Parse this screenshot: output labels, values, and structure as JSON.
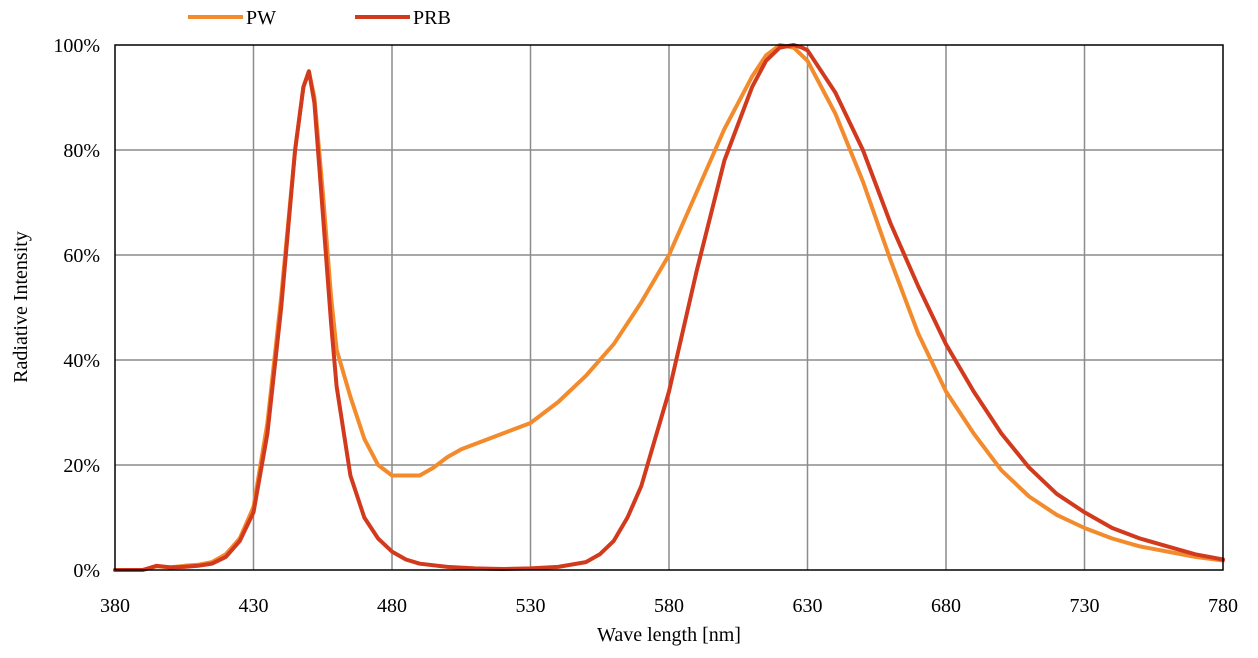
{
  "chart_data": {
    "type": "line",
    "title": "",
    "xlabel": "Wave length [nm]",
    "ylabel": "Radiative Intensity",
    "xlim": [
      380,
      780
    ],
    "ylim": [
      0,
      100
    ],
    "x_ticks": [
      380,
      430,
      480,
      530,
      580,
      630,
      680,
      730,
      780
    ],
    "x_tick_labels": [
      "380",
      "430",
      "480",
      "530",
      "580",
      "630",
      "680",
      "730",
      "780"
    ],
    "y_ticks": [
      0,
      20,
      40,
      60,
      80,
      100
    ],
    "y_tick_labels": [
      "0%",
      "20%",
      "40%",
      "60%",
      "80%",
      "100%"
    ],
    "grid": true,
    "legend_position": "top-left",
    "series": [
      {
        "name": "PW",
        "color": "#f38b2d",
        "x": [
          380,
          390,
          395,
          400,
          405,
          410,
          415,
          420,
          425,
          430,
          435,
          440,
          445,
          448,
          450,
          452,
          455,
          458,
          460,
          465,
          470,
          475,
          480,
          485,
          490,
          495,
          500,
          505,
          510,
          520,
          530,
          540,
          550,
          560,
          570,
          580,
          590,
          600,
          610,
          615,
          620,
          625,
          630,
          640,
          650,
          660,
          670,
          680,
          690,
          700,
          710,
          720,
          730,
          740,
          750,
          760,
          770,
          780
        ],
        "y": [
          0,
          0,
          0.7,
          0.5,
          0.8,
          1,
          1.5,
          3,
          6,
          12,
          28,
          52,
          80,
          92,
          95,
          90,
          72,
          52,
          42,
          33,
          25,
          20,
          18,
          18,
          18,
          19.5,
          21.5,
          23,
          24,
          26,
          28,
          32,
          37,
          43,
          51,
          60,
          72,
          84,
          94,
          98,
          100,
          99.5,
          97,
          87,
          74,
          59,
          45,
          34,
          26,
          19,
          14,
          10.5,
          8,
          6,
          4.5,
          3.5,
          2.5,
          1.8
        ]
      },
      {
        "name": "PRB",
        "color": "#d23a1e",
        "x": [
          380,
          390,
          395,
          400,
          405,
          410,
          415,
          420,
          425,
          430,
          435,
          440,
          445,
          448,
          450,
          452,
          455,
          458,
          460,
          465,
          470,
          475,
          480,
          485,
          490,
          500,
          510,
          520,
          530,
          540,
          550,
          555,
          560,
          565,
          570,
          575,
          580,
          590,
          600,
          610,
          615,
          620,
          625,
          628,
          630,
          640,
          650,
          660,
          670,
          680,
          690,
          700,
          710,
          720,
          730,
          740,
          750,
          760,
          770,
          780
        ],
        "y": [
          0,
          0,
          0.8,
          0.5,
          0.6,
          0.8,
          1.2,
          2.5,
          5.5,
          11,
          26,
          50,
          80,
          92,
          95,
          89,
          68,
          47,
          35,
          18,
          10,
          6,
          3.5,
          2,
          1.2,
          0.6,
          0.3,
          0.2,
          0.3,
          0.6,
          1.5,
          3,
          5.5,
          10,
          16,
          25,
          34,
          57,
          78,
          92,
          97,
          99.5,
          100,
          99.5,
          99,
          91,
          80,
          66,
          54,
          43,
          34,
          26,
          19.5,
          14.5,
          11,
          8,
          6,
          4.5,
          3,
          2
        ]
      }
    ]
  }
}
